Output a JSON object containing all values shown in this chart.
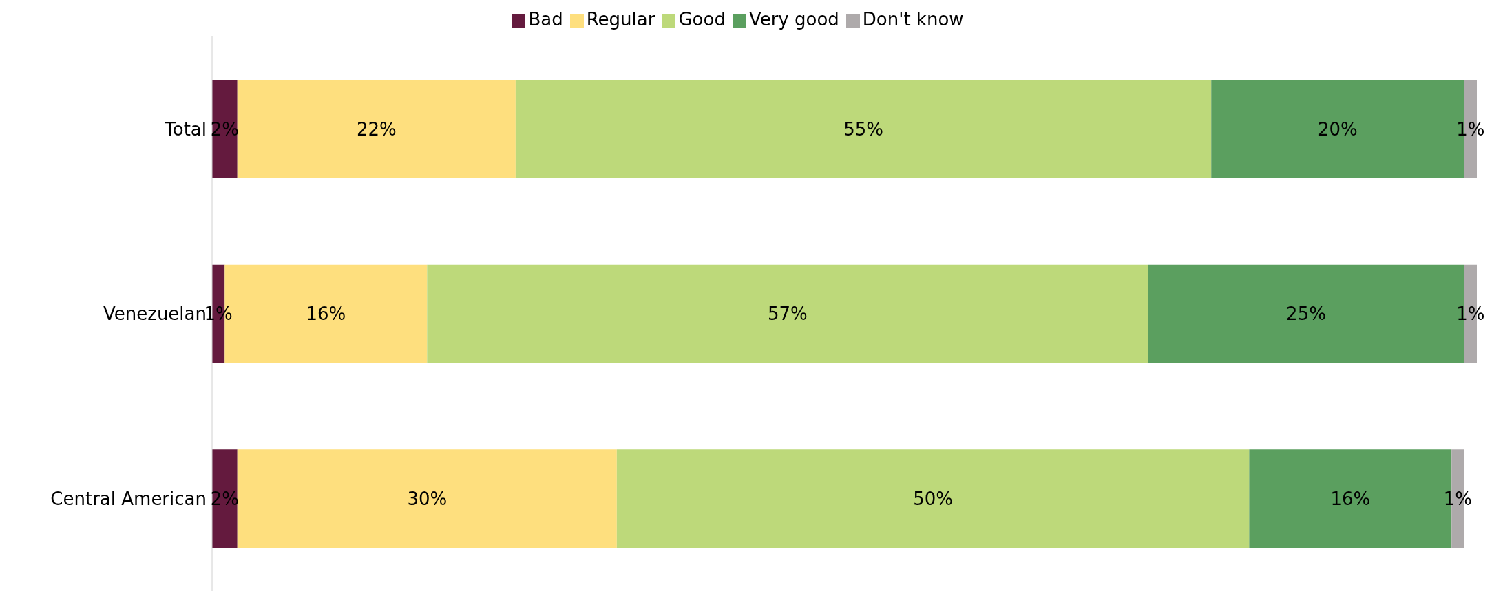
{
  "chart_data": {
    "type": "bar",
    "orientation": "horizontal",
    "stacked": true,
    "legend": "top",
    "grid": false,
    "categories": [
      "Total",
      "Venezuelan",
      "Central American"
    ],
    "series": [
      {
        "name": "Bad",
        "color": "#641a3e",
        "values": [
          2,
          1,
          2
        ],
        "value_labels": [
          "2%",
          "1%",
          "2%"
        ]
      },
      {
        "name": "Regular",
        "color": "#fedf7e",
        "values": [
          22,
          16,
          30
        ],
        "value_labels": [
          "22%",
          "16%",
          "30%"
        ]
      },
      {
        "name": "Good",
        "color": "#bdd97a",
        "values": [
          55,
          57,
          50
        ],
        "value_labels": [
          "55%",
          "57%",
          "50%"
        ]
      },
      {
        "name": "Very good",
        "color": "#5b9f5f",
        "values": [
          20,
          25,
          16
        ],
        "value_labels": [
          "20%",
          "25%",
          "16%"
        ]
      },
      {
        "name": "Don't know",
        "color": "#aeaaab",
        "values": [
          1,
          1,
          1
        ],
        "value_labels": [
          "1%",
          "1%",
          "1%"
        ]
      }
    ]
  }
}
